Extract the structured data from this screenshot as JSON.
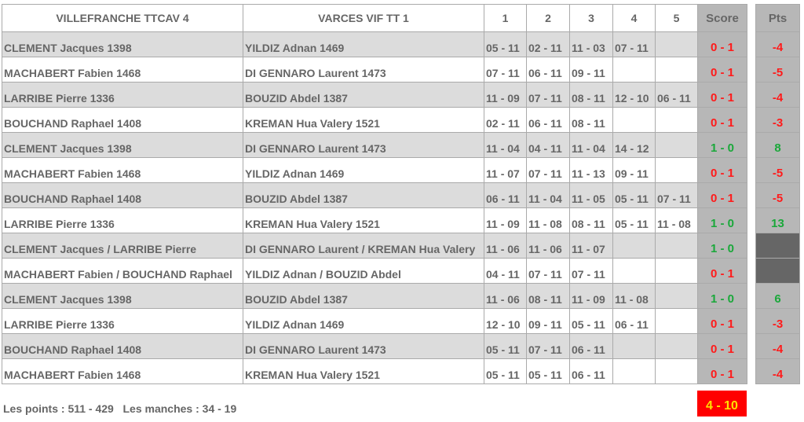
{
  "header": {
    "team1": "VILLEFRANCHE TTCAV 4",
    "team2": "VARCES VIF TT 1",
    "sets": [
      "1",
      "2",
      "3",
      "4",
      "5"
    ],
    "score": "Score",
    "pts": "Pts"
  },
  "rows": [
    {
      "p1": "CLEMENT Jacques 1398",
      "p2": "YILDIZ Adnan 1469",
      "sets": [
        "05 - 11",
        "02 - 11",
        "11 - 03",
        "07 - 11",
        ""
      ],
      "score": "0 - 1",
      "pts": "-4"
    },
    {
      "p1": "MACHABERT Fabien 1468",
      "p2": "DI GENNARO Laurent 1473",
      "sets": [
        "07 - 11",
        "06 - 11",
        "09 - 11",
        "",
        ""
      ],
      "score": "0 - 1",
      "pts": "-5"
    },
    {
      "p1": "LARRIBE Pierre 1336",
      "p2": "BOUZID Abdel 1387",
      "sets": [
        "11 - 09",
        "07 - 11",
        "08 - 11",
        "12 - 10",
        "06 - 11"
      ],
      "score": "0 - 1",
      "pts": "-4"
    },
    {
      "p1": "BOUCHAND Raphael 1408",
      "p2": "KREMAN Hua Valery 1521",
      "sets": [
        "02 - 11",
        "06 - 11",
        "08 - 11",
        "",
        ""
      ],
      "score": "0 - 1",
      "pts": "-3"
    },
    {
      "p1": "CLEMENT Jacques 1398",
      "p2": "DI GENNARO Laurent 1473",
      "sets": [
        "11 - 04",
        "04 - 11",
        "11 - 04",
        "14 - 12",
        ""
      ],
      "score": "1 - 0",
      "pts": "8"
    },
    {
      "p1": "MACHABERT Fabien 1468",
      "p2": "YILDIZ Adnan 1469",
      "sets": [
        "11 - 07",
        "07 - 11",
        "11 - 13",
        "09 - 11",
        ""
      ],
      "score": "0 - 1",
      "pts": "-5"
    },
    {
      "p1": "BOUCHAND Raphael 1408",
      "p2": "BOUZID Abdel 1387",
      "sets": [
        "06 - 11",
        "11 - 04",
        "11 - 05",
        "05 - 11",
        "07 - 11"
      ],
      "score": "0 - 1",
      "pts": "-5"
    },
    {
      "p1": "LARRIBE Pierre 1336",
      "p2": "KREMAN Hua Valery 1521",
      "sets": [
        "11 - 09",
        "11 - 08",
        "08 - 11",
        "05 - 11",
        "11 - 08"
      ],
      "score": "1 - 0",
      "pts": "13"
    },
    {
      "p1": "CLEMENT Jacques  / LARRIBE Pierre",
      "p2": "DI GENNARO Laurent  / KREMAN Hua Valery",
      "sets": [
        "11 - 06",
        "11 - 06",
        "11 - 07",
        "",
        ""
      ],
      "score": "1 - 0",
      "pts": ""
    },
    {
      "p1": "MACHABERT Fabien  / BOUCHAND Raphael",
      "p2": "YILDIZ Adnan  / BOUZID Abdel",
      "sets": [
        "04 - 11",
        "07 - 11",
        "07 - 11",
        "",
        ""
      ],
      "score": "0 - 1",
      "pts": ""
    },
    {
      "p1": "CLEMENT Jacques 1398",
      "p2": "BOUZID Abdel 1387",
      "sets": [
        "11 - 06",
        "08 - 11",
        "11 - 09",
        "11 - 08",
        ""
      ],
      "score": "1 - 0",
      "pts": "6"
    },
    {
      "p1": "LARRIBE Pierre 1336",
      "p2": "YILDIZ Adnan 1469",
      "sets": [
        "12 - 10",
        "09 - 11",
        "05 - 11",
        "06 - 11",
        ""
      ],
      "score": "0 - 1",
      "pts": "-3"
    },
    {
      "p1": "BOUCHAND Raphael 1408",
      "p2": "DI GENNARO Laurent 1473",
      "sets": [
        "05 - 11",
        "07 - 11",
        "06 - 11",
        "",
        ""
      ],
      "score": "0 - 1",
      "pts": "-4"
    },
    {
      "p1": "MACHABERT Fabien 1468",
      "p2": "KREMAN Hua Valery 1521",
      "sets": [
        "05 - 11",
        "05 - 11",
        "06 - 11",
        "",
        ""
      ],
      "score": "0 - 1",
      "pts": "-4"
    }
  ],
  "footer": {
    "summary": "Les points : 511 - 429   Les manches : 34 - 19",
    "total": "4 - 10"
  },
  "colors": {
    "win": "#1aa83a",
    "loss": "#ff1a1a",
    "total_bg": "#ff0000",
    "total_text": "#ffe000"
  }
}
